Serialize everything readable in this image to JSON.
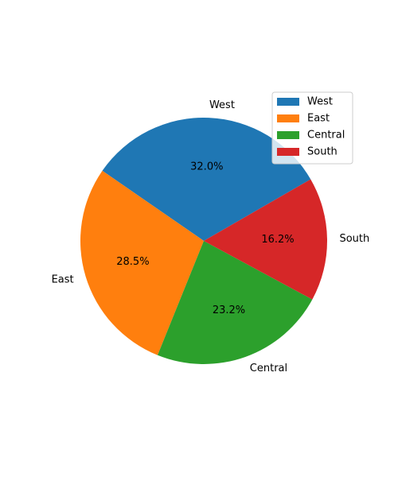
{
  "chart_data": {
    "type": "pie",
    "title": "",
    "categories": [
      "West",
      "East",
      "Central",
      "South"
    ],
    "values": [
      32.0,
      28.5,
      23.2,
      16.2
    ],
    "percent_labels": [
      "32.0%",
      "28.5%",
      "23.2%",
      "16.2%"
    ],
    "colors": [
      "#1f77b4",
      "#ff7f0e",
      "#2ca02c",
      "#d62728"
    ],
    "legend_placement": "upper-right",
    "legend_entries": [
      "West",
      "East",
      "Central",
      "South"
    ]
  }
}
